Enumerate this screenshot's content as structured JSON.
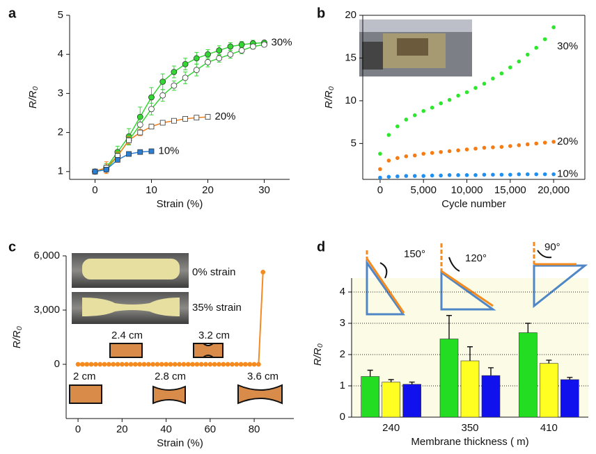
{
  "chart_data": [
    {
      "type": "line",
      "panel_label": "a",
      "x_label": "Strain (%)",
      "y_label": "R/R₀",
      "xlim": [
        -4.5,
        34.5
      ],
      "ylim": [
        0.8,
        5
      ],
      "xticks": [
        0,
        10,
        20,
        30
      ],
      "yticks": [
        1,
        2,
        3,
        4,
        5
      ],
      "series": [
        {
          "name": "30%",
          "color": "#33d633",
          "marker": "circle",
          "marker_fill": "#33d633",
          "x": [
            0,
            2,
            4,
            6,
            8,
            10,
            12,
            14,
            16,
            18,
            20,
            22,
            24,
            26,
            28,
            30
          ],
          "values": [
            1,
            1.1,
            1.5,
            1.9,
            2.4,
            2.9,
            3.3,
            3.55,
            3.75,
            3.9,
            4.0,
            4.1,
            4.2,
            4.25,
            4.28,
            4.3
          ],
          "errors": [
            0.05,
            0.1,
            0.15,
            0.2,
            0.25,
            0.25,
            0.2,
            0.15,
            0.15,
            0.15,
            0.12,
            0.12,
            0.1,
            0.08,
            0.08,
            0.05
          ]
        },
        {
          "color": "#33d633",
          "marker": "circle",
          "marker_fill": "#ffffff",
          "x": [
            0,
            2,
            4,
            6,
            8,
            10,
            12,
            14,
            16,
            18,
            20,
            22,
            24,
            26,
            28,
            30
          ],
          "values": [
            1,
            1.05,
            1.4,
            1.8,
            2.2,
            2.6,
            2.95,
            3.2,
            3.4,
            3.6,
            3.8,
            3.9,
            4.0,
            4.1,
            4.2,
            4.25
          ],
          "errors": [
            0.03,
            0.05,
            0.1,
            0.12,
            0.15,
            0.15,
            0.15,
            0.12,
            0.15,
            0.15,
            0.12,
            0.1,
            0.1,
            0.08,
            0.06,
            0.05
          ]
        },
        {
          "name": "20%",
          "color": "#f07f1a",
          "marker": "square",
          "marker_fill": "#ffffff",
          "x": [
            0,
            2,
            4,
            6,
            8,
            10,
            12,
            14,
            16,
            18,
            20
          ],
          "values": [
            1,
            1.1,
            1.4,
            1.8,
            2.0,
            2.15,
            2.25,
            2.3,
            2.35,
            2.38,
            2.4
          ],
          "errors": [
            0.03,
            0.15,
            0.1,
            0.1,
            0.08,
            0.06,
            0.05,
            0.05,
            0.04,
            0.04,
            0.03
          ]
        },
        {
          "name": "10%",
          "color": "#2a7fd4",
          "marker": "square",
          "marker_fill": "#2a7fd4",
          "x": [
            0,
            2,
            4,
            6,
            8,
            10
          ],
          "values": [
            1,
            1.05,
            1.3,
            1.45,
            1.5,
            1.52
          ]
        }
      ]
    },
    {
      "type": "scatter",
      "panel_label": "b",
      "x_label": "Cycle number",
      "y_label": "R/R₀",
      "xlim": [
        -2000,
        23600
      ],
      "ylim": [
        0.8,
        20
      ],
      "xticks": [
        0,
        {
          "value": 5000,
          "label": "5,000"
        },
        {
          "value": 10000,
          "label": "10,000"
        },
        {
          "value": 15000,
          "label": "15,000"
        },
        {
          "value": 20000,
          "label": "20,000"
        }
      ],
      "yticks": [
        5,
        10,
        15,
        20
      ],
      "x": [
        0,
        1000,
        2000,
        3000,
        4000,
        5000,
        6000,
        7000,
        8000,
        9000,
        10000,
        11000,
        12000,
        13000,
        14000,
        15000,
        16000,
        17000,
        18000,
        19000,
        20000
      ],
      "series": [
        {
          "name": "30%",
          "color": "#2ee62e",
          "values": [
            3.8,
            6,
            7,
            7.8,
            8.3,
            8.8,
            9.2,
            9.7,
            10.1,
            10.6,
            11,
            11.5,
            12,
            12.6,
            13.2,
            13.9,
            14.6,
            15.4,
            16.2,
            17.2,
            18.6
          ]
        },
        {
          "name": "20%",
          "color": "#f57c14",
          "values": [
            2,
            3,
            3.3,
            3.5,
            3.6,
            3.8,
            3.9,
            4,
            4.1,
            4.2,
            4.3,
            4.4,
            4.5,
            4.55,
            4.6,
            4.7,
            4.8,
            4.9,
            5,
            5.1,
            5.2
          ]
        },
        {
          "name": "10%",
          "color": "#1f8ff0",
          "values": [
            1,
            1.1,
            1.15,
            1.2,
            1.2,
            1.2,
            1.25,
            1.25,
            1.3,
            1.3,
            1.3,
            1.3,
            1.35,
            1.35,
            1.35,
            1.35,
            1.4,
            1.4,
            1.4,
            1.4,
            1.4
          ]
        }
      ]
    },
    {
      "type": "line",
      "panel_label": "c",
      "x_label": "Strain (%)",
      "y_label": "R/R₀",
      "xlim": [
        -5.4,
        98
      ],
      "ylim": [
        -3000,
        6000
      ],
      "xticks": [
        0,
        20,
        40,
        60,
        80
      ],
      "yticks": [
        0,
        {
          "value": 3000,
          "label": "3,000"
        },
        {
          "value": 6000,
          "label": "6,000"
        }
      ],
      "annotations": [
        "0% strain",
        "35% strain",
        "2.4 cm",
        "3.2 cm",
        "2 cm",
        "2.8 cm",
        "3.6 cm"
      ],
      "series": [
        {
          "color": "#f58a1f",
          "marker": "circle",
          "marker_fill": "#f58a1f",
          "x": [
            0,
            2,
            4,
            6,
            8,
            10,
            12,
            14,
            16,
            18,
            20,
            22,
            24,
            26,
            28,
            30,
            32,
            34,
            36,
            38,
            40,
            42,
            44,
            46,
            48,
            50,
            52,
            54,
            56,
            58,
            60,
            62,
            64,
            66,
            68,
            70,
            72,
            74,
            76,
            78,
            80,
            82,
            84
          ],
          "values": [
            0,
            0,
            0,
            0,
            0,
            0,
            0,
            0,
            0,
            0,
            0,
            0,
            0,
            0,
            0,
            0,
            0,
            0,
            0,
            0,
            0,
            0,
            0,
            0,
            0,
            0,
            0,
            0,
            0,
            0,
            0,
            0,
            0,
            0,
            0,
            0,
            0,
            0,
            0,
            0,
            0,
            0,
            5100
          ]
        }
      ]
    },
    {
      "type": "bar",
      "panel_label": "d",
      "x_label": "Membrane thickness (  m)",
      "y_label": "R/R₀",
      "ylim": [
        0,
        4
      ],
      "yticks": [
        0,
        1,
        2,
        3,
        4
      ],
      "grid": true,
      "categories": [
        "240",
        "350",
        "410"
      ],
      "annotations": [
        "150°",
        "120°",
        "90°"
      ],
      "series": [
        {
          "color": "#22dd22",
          "values": [
            1.3,
            2.5,
            2.7
          ],
          "errors": [
            0.2,
            0.75,
            0.3
          ]
        },
        {
          "color": "#ffff22",
          "values": [
            1.12,
            1.8,
            1.72
          ],
          "errors": [
            0.08,
            0.45,
            0.1
          ]
        },
        {
          "color": "#1111ee",
          "values": [
            1.05,
            1.33,
            1.2
          ],
          "errors": [
            0.07,
            0.25,
            0.07
          ]
        }
      ]
    }
  ]
}
